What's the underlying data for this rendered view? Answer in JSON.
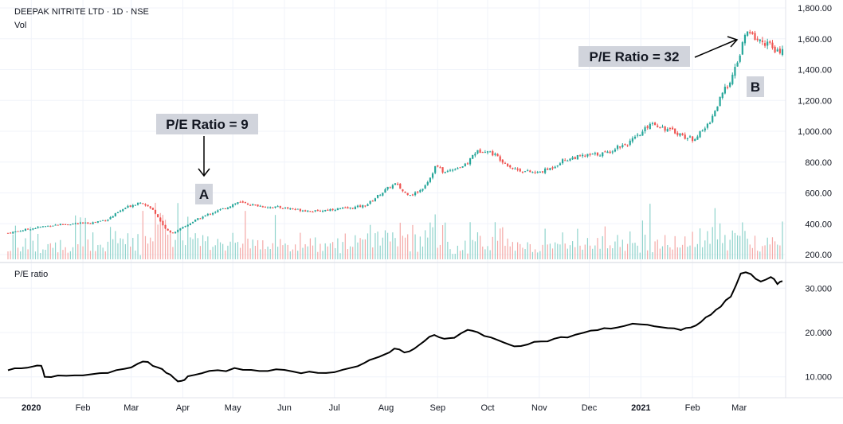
{
  "header": {
    "symbol": "DEEPAK NITRITE LTD · 1D · NSE",
    "volume_label": "Vol"
  },
  "pe_pane": {
    "title": "P/E ratio"
  },
  "annotations": {
    "a": {
      "text": "P/E Ratio = 9",
      "marker": "A"
    },
    "b": {
      "text": "P/E Ratio = 32",
      "marker": "B"
    }
  },
  "colors": {
    "up": "#26a69a",
    "down": "#ef5350",
    "up_volume": "#8fd3cc",
    "down_volume": "#f4a9a7",
    "pe_line": "#000000",
    "grid": "#f0f3fa",
    "axis_text": "#131722",
    "annotation_bg": "#d1d4dc"
  },
  "chart_data": [
    {
      "type": "candlestick",
      "title": "DEEPAK NITRITE LTD · 1D · NSE",
      "y_axis_ticks": [
        "1,800.00",
        "1,600.00",
        "1,400.00",
        "1,200.00",
        "1,000.00",
        "800.00",
        "600.00",
        "400.00",
        "200.00"
      ],
      "y_tick_values": [
        1800,
        1600,
        1400,
        1200,
        1000,
        800,
        600,
        400,
        200
      ],
      "ylim": [
        200,
        1800
      ],
      "x_axis_ticks": [
        "2020",
        "Feb",
        "Mar",
        "Apr",
        "May",
        "Jun",
        "Jul",
        "Aug",
        "Sep",
        "Oct",
        "Nov",
        "Dec",
        "2021",
        "Feb",
        "Mar"
      ],
      "x_tick_bold": [
        true,
        false,
        false,
        false,
        false,
        false,
        false,
        false,
        false,
        false,
        false,
        false,
        true,
        false,
        false
      ],
      "x_tick_day_index": [
        14,
        45,
        74,
        105,
        135,
        166,
        196,
        227,
        258,
        288,
        319,
        349,
        380,
        411,
        439
      ],
      "x_range_days": [
        0,
        465
      ],
      "close_anchors": [
        [
          0,
          340
        ],
        [
          10,
          360
        ],
        [
          20,
          380
        ],
        [
          30,
          395
        ],
        [
          40,
          400
        ],
        [
          50,
          405
        ],
        [
          60,
          430
        ],
        [
          70,
          500
        ],
        [
          80,
          545
        ],
        [
          88,
          480
        ],
        [
          93,
          390
        ],
        [
          97,
          340
        ],
        [
          101,
          350
        ],
        [
          105,
          375
        ],
        [
          112,
          420
        ],
        [
          120,
          460
        ],
        [
          130,
          500
        ],
        [
          138,
          540
        ],
        [
          145,
          525
        ],
        [
          155,
          510
        ],
        [
          165,
          505
        ],
        [
          175,
          490
        ],
        [
          185,
          480
        ],
        [
          195,
          495
        ],
        [
          205,
          500
        ],
        [
          215,
          520
        ],
        [
          222,
          580
        ],
        [
          228,
          630
        ],
        [
          233,
          660
        ],
        [
          238,
          600
        ],
        [
          243,
          590
        ],
        [
          248,
          620
        ],
        [
          253,
          690
        ],
        [
          257,
          780
        ],
        [
          262,
          730
        ],
        [
          268,
          760
        ],
        [
          275,
          780
        ],
        [
          280,
          860
        ],
        [
          286,
          880
        ],
        [
          292,
          850
        ],
        [
          298,
          800
        ],
        [
          303,
          760
        ],
        [
          310,
          740
        ],
        [
          318,
          730
        ],
        [
          326,
          760
        ],
        [
          333,
          810
        ],
        [
          340,
          830
        ],
        [
          346,
          840
        ],
        [
          353,
          850
        ],
        [
          360,
          860
        ],
        [
          366,
          900
        ],
        [
          372,
          920
        ],
        [
          380,
          980
        ],
        [
          386,
          1060
        ],
        [
          390,
          1040
        ],
        [
          396,
          1010
        ],
        [
          402,
          990
        ],
        [
          407,
          960
        ],
        [
          411,
          950
        ],
        [
          416,
          990
        ],
        [
          420,
          1040
        ],
        [
          424,
          1120
        ],
        [
          428,
          1220
        ],
        [
          432,
          1300
        ],
        [
          436,
          1380
        ],
        [
          440,
          1520
        ],
        [
          443,
          1640
        ],
        [
          447,
          1620
        ],
        [
          452,
          1580
        ],
        [
          457,
          1570
        ],
        [
          461,
          1500
        ],
        [
          465,
          1540
        ]
      ],
      "volume_max": 100
    },
    {
      "type": "line",
      "series": [
        {
          "name": "P/E ratio",
          "points": [
            [
              0,
              11.5
            ],
            [
              8,
              11.8
            ],
            [
              15,
              12.2
            ],
            [
              20,
              12.5
            ],
            [
              22,
              10.0
            ],
            [
              30,
              10.3
            ],
            [
              40,
              10.5
            ],
            [
              50,
              10.6
            ],
            [
              60,
              11.0
            ],
            [
              70,
              12.0
            ],
            [
              78,
              12.8
            ],
            [
              84,
              13.5
            ],
            [
              90,
              12.0
            ],
            [
              95,
              11.0
            ],
            [
              100,
              9.5
            ],
            [
              104,
              9.0
            ],
            [
              108,
              10.0
            ],
            [
              116,
              10.8
            ],
            [
              126,
              11.3
            ],
            [
              136,
              11.8
            ],
            [
              146,
              11.6
            ],
            [
              156,
              11.5
            ],
            [
              166,
              11.4
            ],
            [
              176,
              11.0
            ],
            [
              186,
              11.0
            ],
            [
              196,
              11.2
            ],
            [
              206,
              12.0
            ],
            [
              214,
              13.0
            ],
            [
              220,
              14.0
            ],
            [
              226,
              15.0
            ],
            [
              232,
              16.5
            ],
            [
              238,
              15.5
            ],
            [
              244,
              16.5
            ],
            [
              250,
              18.0
            ],
            [
              256,
              19.5
            ],
            [
              262,
              18.5
            ],
            [
              268,
              18.8
            ],
            [
              276,
              20.5
            ],
            [
              282,
              20.0
            ],
            [
              290,
              19.0
            ],
            [
              298,
              17.5
            ],
            [
              304,
              17.0
            ],
            [
              312,
              17.5
            ],
            [
              320,
              18.0
            ],
            [
              328,
              18.5
            ],
            [
              336,
              19.0
            ],
            [
              346,
              20.0
            ],
            [
              354,
              20.5
            ],
            [
              362,
              21.0
            ],
            [
              370,
              21.5
            ],
            [
              380,
              22.0
            ],
            [
              388,
              21.5
            ],
            [
              396,
              21.0
            ],
            [
              404,
              20.5
            ],
            [
              410,
              21.0
            ],
            [
              416,
              22.5
            ],
            [
              422,
              24.0
            ],
            [
              428,
              26.0
            ],
            [
              434,
              28.0
            ],
            [
              440,
              33.5
            ],
            [
              446,
              33.2
            ],
            [
              452,
              31.5
            ],
            [
              458,
              32.5
            ],
            [
              462,
              31.0
            ],
            [
              465,
              31.5
            ]
          ]
        }
      ],
      "y_axis_ticks": [
        "30.000",
        "20.000",
        "10.000"
      ],
      "y_tick_values": [
        30,
        20,
        10
      ],
      "ylim": [
        6,
        34
      ]
    }
  ]
}
